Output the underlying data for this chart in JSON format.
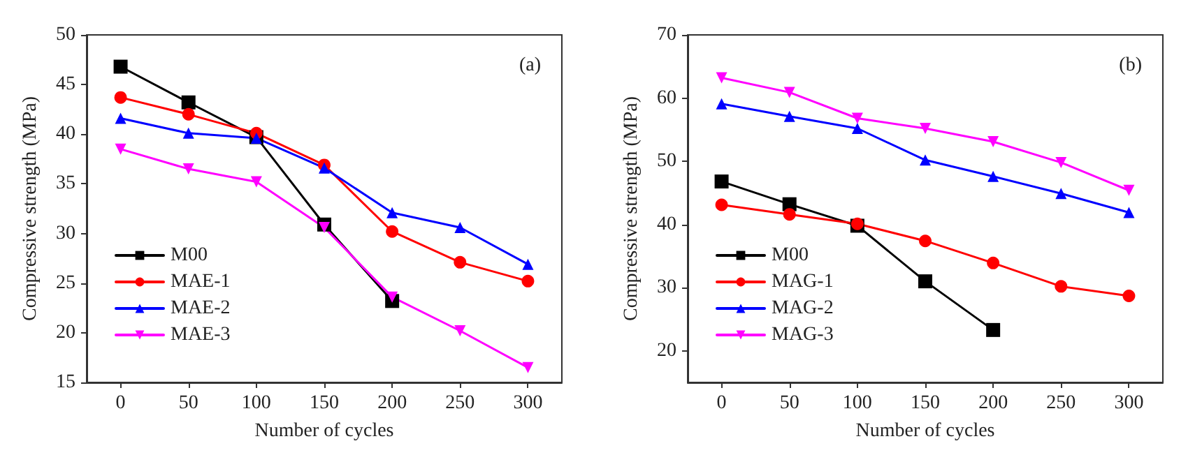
{
  "chart_data": [
    {
      "type": "line",
      "xlabel": "Number of cycles",
      "ylabel": "Compressive strength (MPa)",
      "annotations": [
        "(a)"
      ],
      "x": [
        0,
        50,
        100,
        150,
        200,
        250,
        300
      ],
      "xlim": [
        -25,
        325
      ],
      "xticks": [
        0,
        50,
        100,
        150,
        200,
        250,
        300
      ],
      "ylim": [
        15,
        50
      ],
      "yticks": [
        15,
        20,
        25,
        30,
        35,
        40,
        45,
        50
      ],
      "grid": false,
      "legend": "bottom left",
      "line_style": "solid",
      "series": [
        {
          "name": "M00",
          "color": "#000000",
          "marker": "square",
          "values": [
            46.8,
            43.2,
            39.7,
            30.9,
            23.2,
            null,
            null
          ]
        },
        {
          "name": "MAE-1",
          "color": "#ff0000",
          "marker": "circle",
          "values": [
            43.7,
            42.0,
            40.1,
            36.9,
            30.2,
            27.1,
            25.2
          ]
        },
        {
          "name": "MAE-2",
          "color": "#0000ff",
          "marker": "triangle",
          "values": [
            41.6,
            40.1,
            39.6,
            36.6,
            32.1,
            30.6,
            26.9
          ]
        },
        {
          "name": "MAE-3",
          "color": "#ff00ff",
          "marker": "triangle-down",
          "values": [
            38.5,
            36.5,
            35.2,
            30.6,
            23.6,
            20.2,
            16.5
          ]
        }
      ]
    },
    {
      "type": "line",
      "xlabel": "Number of cycles",
      "ylabel": "Compressive strength (MPa)",
      "annotations": [
        "(b)"
      ],
      "x": [
        0,
        50,
        100,
        150,
        200,
        250,
        300
      ],
      "xlim": [
        -25,
        325
      ],
      "xticks": [
        0,
        50,
        100,
        150,
        200,
        250,
        300
      ],
      "ylim": [
        15,
        70
      ],
      "yticks": [
        20,
        30,
        40,
        50,
        60,
        70
      ],
      "grid": false,
      "legend": "bottom left",
      "line_style": "solid",
      "series": [
        {
          "name": "M00",
          "color": "#000000",
          "marker": "square",
          "values": [
            46.8,
            43.2,
            39.8,
            31.0,
            23.3,
            null,
            null
          ]
        },
        {
          "name": "MAG-1",
          "color": "#ff0000",
          "marker": "circle",
          "values": [
            43.1,
            41.6,
            40.1,
            37.4,
            33.9,
            30.2,
            28.7
          ]
        },
        {
          "name": "MAG-2",
          "color": "#0000ff",
          "marker": "triangle",
          "values": [
            59.1,
            57.1,
            55.2,
            50.2,
            47.6,
            44.9,
            41.9
          ]
        },
        {
          "name": "MAG-3",
          "color": "#ff00ff",
          "marker": "triangle-down",
          "values": [
            63.2,
            60.9,
            56.8,
            55.2,
            53.1,
            49.8,
            45.4
          ]
        }
      ]
    }
  ]
}
